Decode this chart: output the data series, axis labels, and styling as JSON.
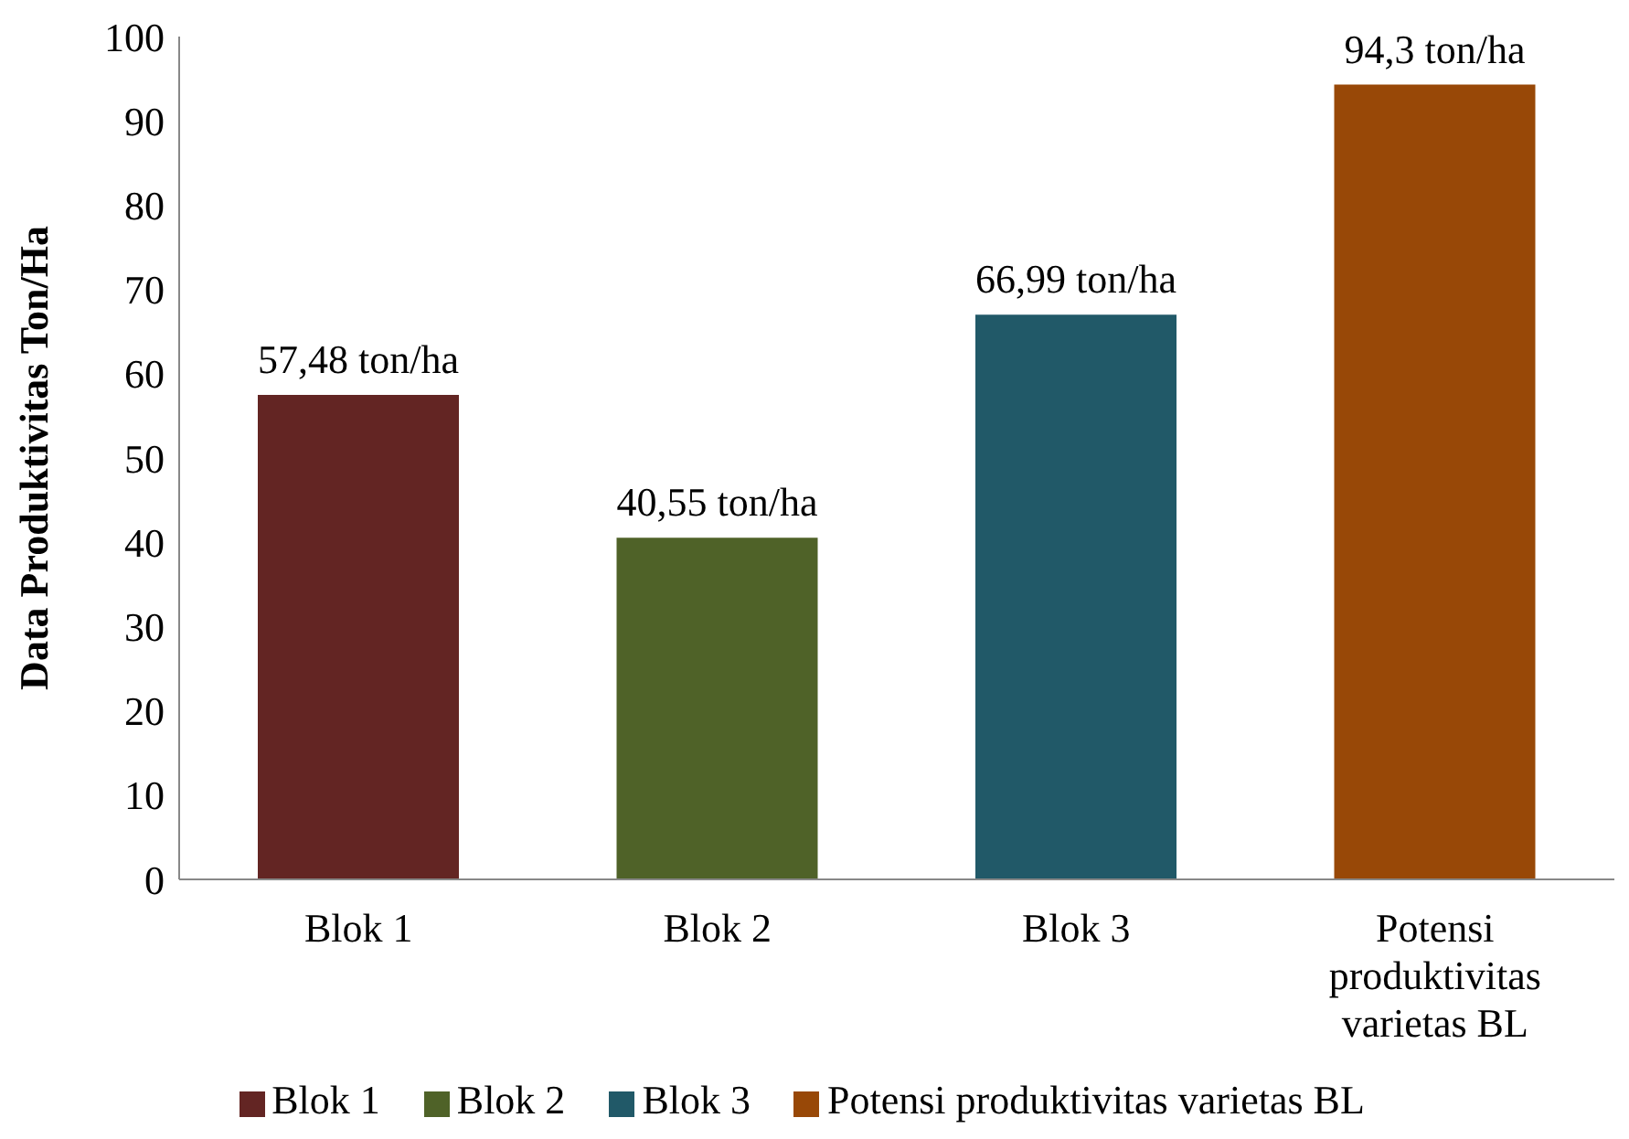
{
  "chart_data": {
    "type": "bar",
    "ylabel": "Data Produktivitas Ton/Ha",
    "categories": [
      "Blok 1",
      "Blok 2",
      "Blok 3",
      "Potensi produktivitas varietas BL"
    ],
    "series": [
      {
        "name": "Blok 1",
        "color": "#632523",
        "values": [
          57.48,
          null,
          null,
          null
        ],
        "value_labels": [
          "57,48 ton/ha",
          null,
          null,
          null
        ]
      },
      {
        "name": "Blok 2",
        "color": "#4f6228",
        "values": [
          null,
          40.55,
          null,
          null
        ],
        "value_labels": [
          null,
          "40,55 ton/ha",
          null,
          null
        ]
      },
      {
        "name": "Blok 3",
        "color": "#215968",
        "values": [
          null,
          null,
          66.99,
          null
        ],
        "value_labels": [
          null,
          null,
          "66,99 ton/ha",
          null
        ]
      },
      {
        "name": "Potensi produktivitas varietas BL",
        "color": "#984807",
        "values": [
          null,
          null,
          null,
          94.3
        ],
        "value_labels": [
          null,
          null,
          null,
          "94,3 ton/ha"
        ]
      }
    ],
    "ylim": [
      0,
      100
    ],
    "yticks": [
      0,
      10,
      20,
      30,
      40,
      50,
      60,
      70,
      80,
      90,
      100
    ],
    "grid": false,
    "legend": "bottom"
  }
}
